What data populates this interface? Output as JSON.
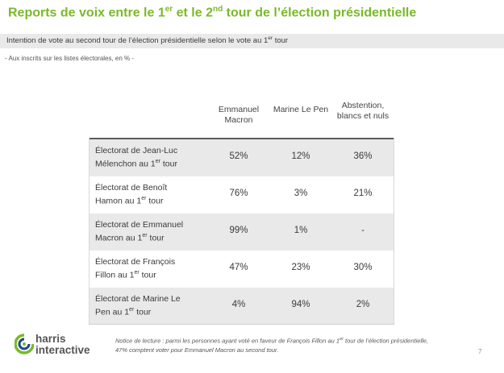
{
  "title": {
    "part1": "Reports de voix entre le 1",
    "sup1": "er",
    "part2": " et le 2",
    "sup2": "nd",
    "part3": " tour de l’élection présidentielle"
  },
  "subtitle": {
    "text": "Intention de vote au second tour de l’élection présidentielle selon le vote au 1",
    "sup": "er",
    "tail": " tour"
  },
  "note": "- Aux inscrits sur les listes électorales, en % -",
  "columns": [
    "Emmanuel Macron",
    "Marine Le Pen",
    "Abstention, blancs et nuls"
  ],
  "rows": [
    {
      "label": "Électorat de Jean-Luc Mélenchon au 1",
      "sup": "er",
      "tail": " tour",
      "values": [
        "52%",
        "12%",
        "36%"
      ]
    },
    {
      "label": "Électorat de Benoît Hamon au 1",
      "sup": "er",
      "tail": " tour",
      "values": [
        "76%",
        "3%",
        "21%"
      ]
    },
    {
      "label": "Électorat de Emmanuel Macron au 1",
      "sup": "er",
      "tail": " tour",
      "values": [
        "99%",
        "1%",
        "-"
      ]
    },
    {
      "label": "Électorat de François Fillon au 1",
      "sup": "er",
      "tail": " tour",
      "values": [
        "47%",
        "23%",
        "30%"
      ]
    },
    {
      "label": "Électorat de Marine Le Pen au 1",
      "sup": "er",
      "tail": " tour",
      "values": [
        "4%",
        "94%",
        "2%"
      ]
    }
  ],
  "footnote": {
    "part1": "Notice de lecture : parmi les personnes ayant voté en faveur de François Fillon au 1",
    "sup": "er",
    "part2": " tour de l’élection présidentielle, 47% comptent voter pour Emmanuel Macron au second tour."
  },
  "logo": {
    "line1": "harris",
    "line2": "interactive"
  },
  "page_number": "7",
  "colors": {
    "accent": "#7ab929",
    "logo_blue": "#1a4a8a",
    "shade": "#e9e9e9"
  }
}
